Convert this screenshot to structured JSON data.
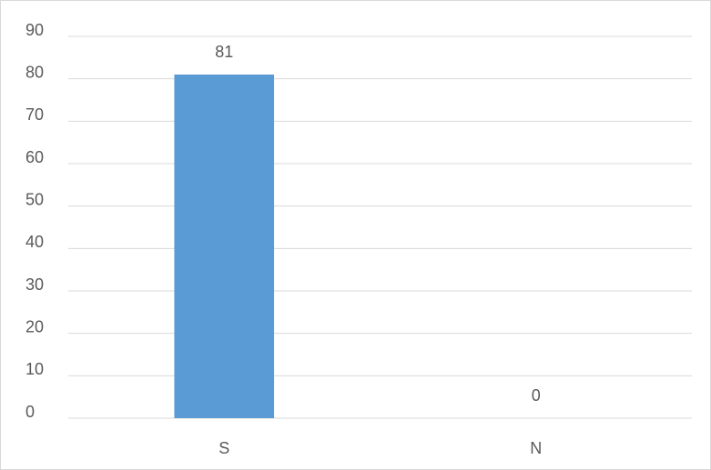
{
  "chart_data": {
    "type": "bar",
    "categories": [
      "S",
      "N"
    ],
    "values": [
      81,
      0
    ],
    "color": "#5b9bd5",
    "ylim": [
      0,
      90
    ],
    "yticks": [
      0,
      10,
      20,
      30,
      40,
      50,
      60,
      70,
      80,
      90
    ],
    "grid": true
  }
}
